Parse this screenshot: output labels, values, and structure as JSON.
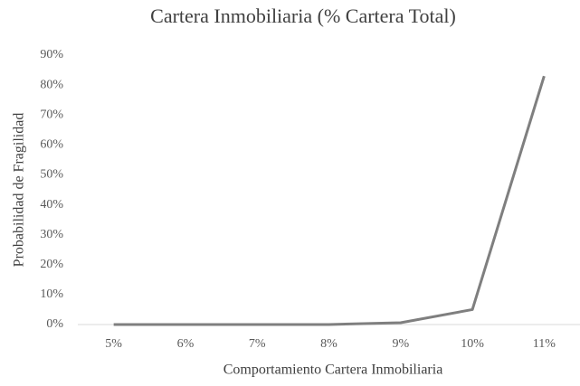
{
  "chart_data": {
    "type": "line",
    "title": "Cartera Inmobiliaria (% Cartera Total)",
    "xlabel": "Comportamiento Cartera Inmobiliaria",
    "ylabel": "Probabilidad de Fragilidad",
    "categories": [
      "5%",
      "6%",
      "7%",
      "8%",
      "9%",
      "10%",
      "11%"
    ],
    "series": [
      {
        "name": "Probabilidad de Fragilidad",
        "color": "#7f7f7f",
        "values": [
          0,
          0,
          0,
          0,
          0.6,
          5,
          83
        ]
      }
    ],
    "ylim": [
      0,
      90
    ],
    "yticks": [
      {
        "value": 0,
        "label": "0%"
      },
      {
        "value": 10,
        "label": "10%"
      },
      {
        "value": 20,
        "label": "20%"
      },
      {
        "value": 30,
        "label": "30%"
      },
      {
        "value": 40,
        "label": "40%"
      },
      {
        "value": 50,
        "label": "50%"
      },
      {
        "value": 60,
        "label": "60%"
      },
      {
        "value": 70,
        "label": "70%"
      },
      {
        "value": 80,
        "label": "80%"
      },
      {
        "value": 90,
        "label": "90%"
      }
    ],
    "grid": false
  }
}
